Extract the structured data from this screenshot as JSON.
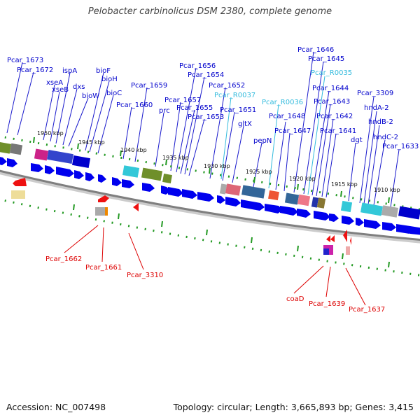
{
  "title": "Pelobacter carbinolicus DSM 2380, complete genome",
  "footer": {
    "accession": "Accession: NC_007498",
    "summary": "Topology: circular; Length: 3,665,893 bp; Genes: 3,415"
  },
  "colors": {
    "gene_label": "#0000cc",
    "rna_label": "#33bbdd",
    "reverse_label": "#dd0000",
    "forward_arrow": "#0000ee",
    "backbone": "#888888",
    "tick": "#229922"
  },
  "scale_labels": [
    "1950 kbp",
    "1945 kbp",
    "1940 kbp",
    "1935 kbp",
    "1930 kbp",
    "1925 kbp",
    "1920 kbp",
    "1915 kbp",
    "1910 kbp"
  ],
  "forward_labels": [
    {
      "text": "Pcar_1673",
      "kind": "gene"
    },
    {
      "text": "Pcar_1672",
      "kind": "gene"
    },
    {
      "text": "ispA",
      "kind": "gene"
    },
    {
      "text": "xseA",
      "kind": "gene"
    },
    {
      "text": "xseB",
      "kind": "gene"
    },
    {
      "text": "dxs",
      "kind": "gene"
    },
    {
      "text": "bioW",
      "kind": "gene"
    },
    {
      "text": "bioF",
      "kind": "gene"
    },
    {
      "text": "bioH",
      "kind": "gene"
    },
    {
      "text": "bioC",
      "kind": "gene"
    },
    {
      "text": "Pcar_1660",
      "kind": "gene"
    },
    {
      "text": "Pcar_1659",
      "kind": "gene"
    },
    {
      "text": "prc",
      "kind": "gene"
    },
    {
      "text": "Pcar_1657",
      "kind": "gene"
    },
    {
      "text": "Pcar_1656",
      "kind": "gene"
    },
    {
      "text": "Pcar_1655",
      "kind": "gene"
    },
    {
      "text": "Pcar_1654",
      "kind": "gene"
    },
    {
      "text": "Pcar_1653",
      "kind": "gene"
    },
    {
      "text": "Pcar_1652",
      "kind": "gene"
    },
    {
      "text": "Pcar_R0037",
      "kind": "rna"
    },
    {
      "text": "Pcar_1651",
      "kind": "gene"
    },
    {
      "text": "gltX",
      "kind": "gene"
    },
    {
      "text": "pepN",
      "kind": "gene"
    },
    {
      "text": "Pcar_R0036",
      "kind": "rna"
    },
    {
      "text": "Pcar_1648",
      "kind": "gene"
    },
    {
      "text": "Pcar_1647",
      "kind": "gene"
    },
    {
      "text": "Pcar_1646",
      "kind": "gene"
    },
    {
      "text": "Pcar_1645",
      "kind": "gene"
    },
    {
      "text": "Pcar_R0035",
      "kind": "rna"
    },
    {
      "text": "Pcar_1644",
      "kind": "gene"
    },
    {
      "text": "Pcar_1643",
      "kind": "gene"
    },
    {
      "text": "Pcar_1642",
      "kind": "gene"
    },
    {
      "text": "Pcar_1641",
      "kind": "gene"
    },
    {
      "text": "dgt",
      "kind": "gene"
    },
    {
      "text": "Pcar_3309",
      "kind": "gene"
    },
    {
      "text": "hndA-2",
      "kind": "gene"
    },
    {
      "text": "hndB-2",
      "kind": "gene"
    },
    {
      "text": "hndC-2",
      "kind": "gene"
    },
    {
      "text": "Pcar_1633",
      "kind": "gene"
    }
  ],
  "reverse_labels": [
    "Pcar_1662",
    "Pcar_1661",
    "Pcar_3310",
    "coaD",
    "Pcar_1639",
    "Pcar_1637"
  ]
}
